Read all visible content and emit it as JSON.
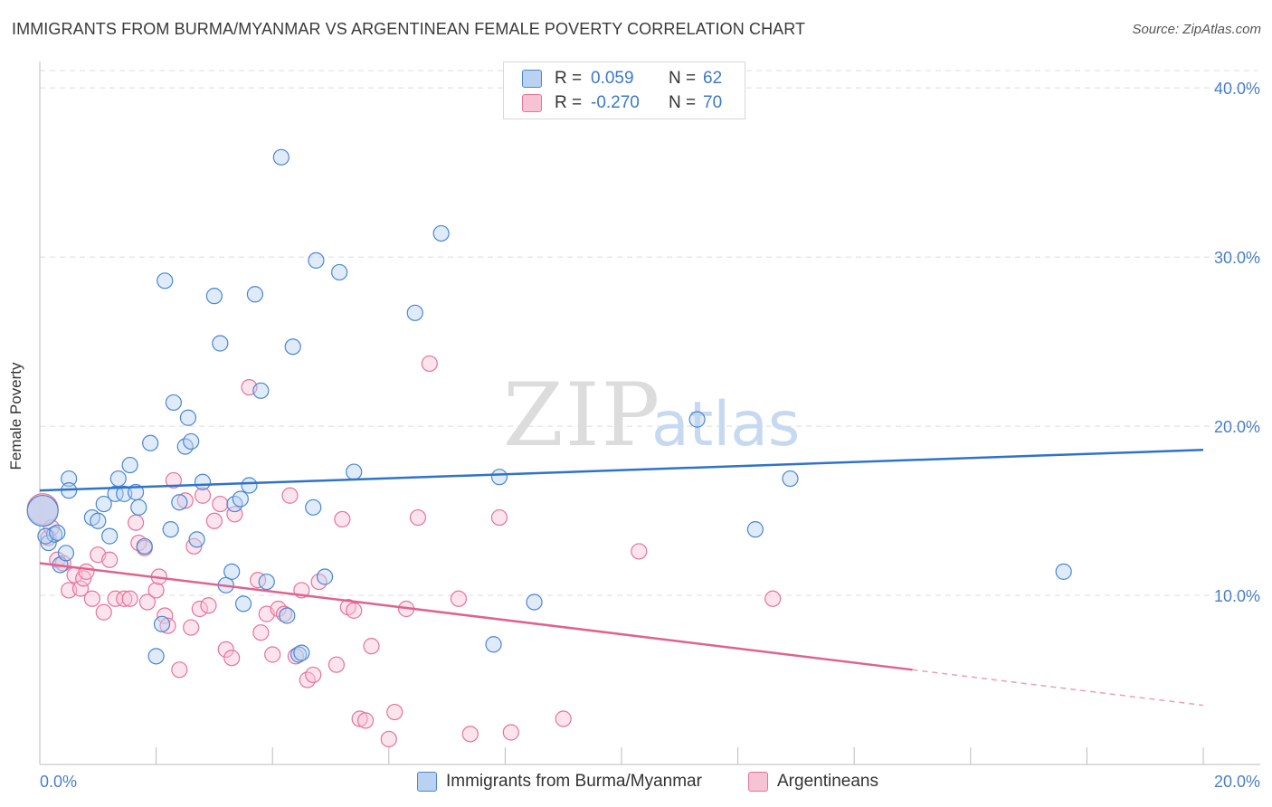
{
  "title": "IMMIGRANTS FROM BURMA/MYANMAR VS ARGENTINEAN FEMALE POVERTY CORRELATION CHART",
  "source": "Source: ZipAtlas.com",
  "watermark": {
    "zip": "ZIP",
    "atlas": "atlas"
  },
  "legend_top": [
    {
      "r_label": "R =",
      "r_value": "0.059",
      "n_label": "N =",
      "n_value": "62"
    },
    {
      "r_label": "R =",
      "r_value": "-0.270",
      "n_label": "N =",
      "n_value": "70"
    }
  ],
  "legend_bottom": [
    "Immigrants from Burma/Myanmar",
    "Argentineans"
  ],
  "colors": {
    "blue": "#4a86d4",
    "blue_fill": "#b9d2f2",
    "pink": "#e8729a",
    "pink_fill": "#f7c3d4",
    "axis_text": "#4a7fc8",
    "grid": "#dcdcdc"
  },
  "chart_data": {
    "type": "scatter",
    "title": "IMMIGRANTS FROM BURMA/MYANMAR VS ARGENTINEAN FEMALE POVERTY CORRELATION CHART",
    "xlabel": "",
    "ylabel": "Female Poverty",
    "xlim": [
      0,
      20
    ],
    "ylim": [
      0,
      40
    ],
    "x_tick_labels": [
      "0.0%",
      "20.0%"
    ],
    "y_tick_labels": [
      "10.0%",
      "20.0%",
      "30.0%",
      "40.0%"
    ],
    "y_ticks": [
      10,
      20,
      30,
      40
    ],
    "grid": true,
    "legend": "top-center",
    "series": [
      {
        "name": "Immigrants from Burma/Myanmar",
        "color": "#4a86d4",
        "trend": {
          "x": [
            0,
            20
          ],
          "y": [
            16.2,
            18.6
          ],
          "dashed_from": null
        },
        "points": [
          [
            0.05,
            15.0
          ],
          [
            0.15,
            13.1
          ],
          [
            0.25,
            13.6
          ],
          [
            0.35,
            11.8
          ],
          [
            0.45,
            12.5
          ],
          [
            0.5,
            16.9
          ],
          [
            0.5,
            16.2
          ],
          [
            0.9,
            14.6
          ],
          [
            1.0,
            14.4
          ],
          [
            1.1,
            15.4
          ],
          [
            1.2,
            13.5
          ],
          [
            1.3,
            16.0
          ],
          [
            1.35,
            16.9
          ],
          [
            1.45,
            16.0
          ],
          [
            1.55,
            17.7
          ],
          [
            1.65,
            16.1
          ],
          [
            1.7,
            15.2
          ],
          [
            1.8,
            12.9
          ],
          [
            1.9,
            19.0
          ],
          [
            2.0,
            6.4
          ],
          [
            2.1,
            8.3
          ],
          [
            2.15,
            28.6
          ],
          [
            2.25,
            13.9
          ],
          [
            2.3,
            21.4
          ],
          [
            2.4,
            15.5
          ],
          [
            2.5,
            18.8
          ],
          [
            2.55,
            20.5
          ],
          [
            2.6,
            19.1
          ],
          [
            2.7,
            13.3
          ],
          [
            2.8,
            16.7
          ],
          [
            3.0,
            27.7
          ],
          [
            3.1,
            24.9
          ],
          [
            3.2,
            10.6
          ],
          [
            3.3,
            11.4
          ],
          [
            3.35,
            15.4
          ],
          [
            3.45,
            15.7
          ],
          [
            3.5,
            9.5
          ],
          [
            3.6,
            16.5
          ],
          [
            3.7,
            27.8
          ],
          [
            3.8,
            22.1
          ],
          [
            3.9,
            10.8
          ],
          [
            4.15,
            35.9
          ],
          [
            4.25,
            8.8
          ],
          [
            4.35,
            24.7
          ],
          [
            4.45,
            6.5
          ],
          [
            4.5,
            6.6
          ],
          [
            4.7,
            15.2
          ],
          [
            4.75,
            29.8
          ],
          [
            4.9,
            11.1
          ],
          [
            5.15,
            29.1
          ],
          [
            5.4,
            17.3
          ],
          [
            6.45,
            26.7
          ],
          [
            6.9,
            31.4
          ],
          [
            7.8,
            7.1
          ],
          [
            7.9,
            17.0
          ],
          [
            8.5,
            9.6
          ],
          [
            11.3,
            20.4
          ],
          [
            12.3,
            13.9
          ],
          [
            12.9,
            16.9
          ],
          [
            17.6,
            11.4
          ],
          [
            0.1,
            13.5
          ],
          [
            0.3,
            13.7
          ]
        ]
      },
      {
        "name": "Argentineans",
        "color": "#e8729a",
        "trend": {
          "x": [
            0,
            15
          ],
          "y": [
            11.9,
            5.6
          ],
          "dashed_to": [
            20,
            3.5
          ]
        },
        "points": [
          [
            0.05,
            15.1
          ],
          [
            0.15,
            13.4
          ],
          [
            0.2,
            14.0
          ],
          [
            0.3,
            12.1
          ],
          [
            0.4,
            11.9
          ],
          [
            0.5,
            10.3
          ],
          [
            0.6,
            11.2
          ],
          [
            0.7,
            10.4
          ],
          [
            0.75,
            11.0
          ],
          [
            0.8,
            11.4
          ],
          [
            0.9,
            9.8
          ],
          [
            1.0,
            12.4
          ],
          [
            1.1,
            9.0
          ],
          [
            1.2,
            12.1
          ],
          [
            1.3,
            9.8
          ],
          [
            1.45,
            9.8
          ],
          [
            1.55,
            9.8
          ],
          [
            1.65,
            14.3
          ],
          [
            1.7,
            13.1
          ],
          [
            1.8,
            12.8
          ],
          [
            1.85,
            9.6
          ],
          [
            2.0,
            10.3
          ],
          [
            2.05,
            11.1
          ],
          [
            2.15,
            8.8
          ],
          [
            2.2,
            8.2
          ],
          [
            2.3,
            16.8
          ],
          [
            2.4,
            5.6
          ],
          [
            2.5,
            15.6
          ],
          [
            2.6,
            8.1
          ],
          [
            2.65,
            12.9
          ],
          [
            2.75,
            9.2
          ],
          [
            2.8,
            15.9
          ],
          [
            2.9,
            9.4
          ],
          [
            3.0,
            14.4
          ],
          [
            3.1,
            15.4
          ],
          [
            3.2,
            6.8
          ],
          [
            3.3,
            6.3
          ],
          [
            3.35,
            14.8
          ],
          [
            3.6,
            22.3
          ],
          [
            3.75,
            10.9
          ],
          [
            3.8,
            7.8
          ],
          [
            3.9,
            8.9
          ],
          [
            4.0,
            6.5
          ],
          [
            4.1,
            9.2
          ],
          [
            4.2,
            8.9
          ],
          [
            4.3,
            15.9
          ],
          [
            4.4,
            6.4
          ],
          [
            4.5,
            10.3
          ],
          [
            4.6,
            5.0
          ],
          [
            4.7,
            5.3
          ],
          [
            4.8,
            10.8
          ],
          [
            5.1,
            5.9
          ],
          [
            5.2,
            14.5
          ],
          [
            5.3,
            9.3
          ],
          [
            5.4,
            9.1
          ],
          [
            5.5,
            2.7
          ],
          [
            5.6,
            2.6
          ],
          [
            5.7,
            7.0
          ],
          [
            6.0,
            1.5
          ],
          [
            6.1,
            3.1
          ],
          [
            6.3,
            9.2
          ],
          [
            6.5,
            14.6
          ],
          [
            6.7,
            23.7
          ],
          [
            7.2,
            9.8
          ],
          [
            7.4,
            1.8
          ],
          [
            7.9,
            14.6
          ],
          [
            8.1,
            1.9
          ],
          [
            9.0,
            2.7
          ],
          [
            10.3,
            12.6
          ],
          [
            12.6,
            9.8
          ]
        ]
      }
    ]
  }
}
